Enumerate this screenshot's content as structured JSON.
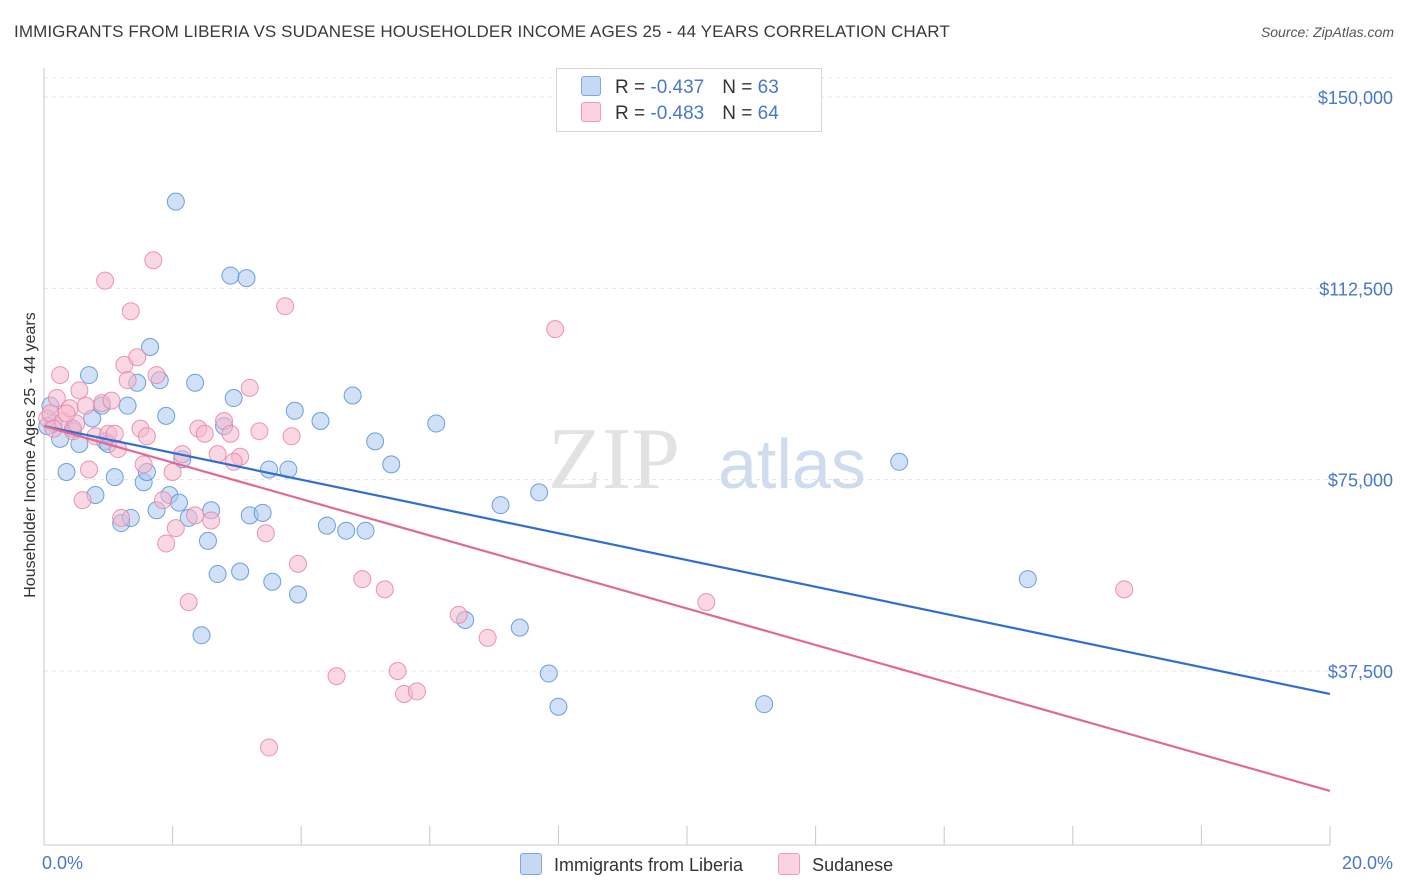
{
  "title": "IMMIGRANTS FROM LIBERIA VS SUDANESE HOUSEHOLDER INCOME AGES 25 - 44 YEARS CORRELATION CHART",
  "source": "Source: ZipAtlas.com",
  "watermark": {
    "zip": "ZIP",
    "atlas": "atlas"
  },
  "legend_top": [
    {
      "r_label": "R = ",
      "r_value": "-0.437",
      "n_label": "N = ",
      "n_value": "63",
      "color": "#aac8f0"
    },
    {
      "r_label": "R = ",
      "r_value": "-0.483",
      "n_label": "N = ",
      "n_value": "64",
      "color": "#f6b8cc"
    }
  ],
  "legend_bottom": [
    {
      "label": "Immigrants from Liberia",
      "color": "#aac8f0"
    },
    {
      "label": "Sudanese",
      "color": "#f6b8cc"
    }
  ],
  "chart_data": {
    "type": "scatter",
    "title": "IMMIGRANTS FROM LIBERIA VS SUDANESE HOUSEHOLDER INCOME AGES 25 - 44 YEARS CORRELATION CHART",
    "xlabel": "",
    "ylabel": "Householder Income Ages 25 - 44 years",
    "xlim": [
      0,
      20
    ],
    "ylim": [
      0,
      155000
    ],
    "x_tick_labels": [
      "0.0%",
      "20.0%"
    ],
    "y_ticks": [
      37500,
      75000,
      112500,
      150000
    ],
    "y_tick_labels": [
      "$37,500",
      "$75,000",
      "$112,500",
      "$150,000"
    ],
    "grid": true,
    "series": [
      {
        "name": "Immigrants from Liberia",
        "color": "#5b8fd6",
        "fill": "#aac8f0",
        "trendline": {
          "x": [
            0,
            20
          ],
          "y": [
            85500,
            33000
          ],
          "color": "#2e6fcf"
        },
        "points": [
          [
            0.1,
            89500
          ],
          [
            0.15,
            86000
          ],
          [
            0.25,
            83000
          ],
          [
            0.35,
            76500
          ],
          [
            0.45,
            85000
          ],
          [
            0.55,
            82000
          ],
          [
            0.7,
            95500
          ],
          [
            0.75,
            87000
          ],
          [
            0.8,
            72000
          ],
          [
            0.9,
            89500
          ],
          [
            0.95,
            82500
          ],
          [
            1.0,
            82000
          ],
          [
            1.1,
            75500
          ],
          [
            1.2,
            66500
          ],
          [
            1.3,
            89500
          ],
          [
            1.35,
            67500
          ],
          [
            1.45,
            94000
          ],
          [
            1.55,
            74500
          ],
          [
            1.6,
            76500
          ],
          [
            1.65,
            101000
          ],
          [
            1.75,
            69000
          ],
          [
            1.8,
            94500
          ],
          [
            1.9,
            87500
          ],
          [
            1.95,
            72000
          ],
          [
            2.05,
            129500
          ],
          [
            2.1,
            70500
          ],
          [
            2.15,
            79000
          ],
          [
            2.25,
            67500
          ],
          [
            2.35,
            94000
          ],
          [
            2.45,
            44500
          ],
          [
            2.55,
            63000
          ],
          [
            2.6,
            69000
          ],
          [
            2.7,
            56500
          ],
          [
            2.8,
            85500
          ],
          [
            2.9,
            115000
          ],
          [
            2.95,
            91000
          ],
          [
            3.05,
            57000
          ],
          [
            3.15,
            114500
          ],
          [
            3.2,
            68000
          ],
          [
            3.4,
            68500
          ],
          [
            3.5,
            77000
          ],
          [
            3.55,
            55000
          ],
          [
            3.8,
            77000
          ],
          [
            3.9,
            88500
          ],
          [
            3.95,
            52500
          ],
          [
            4.3,
            86500
          ],
          [
            4.4,
            66000
          ],
          [
            4.7,
            65000
          ],
          [
            4.8,
            91500
          ],
          [
            5.0,
            65000
          ],
          [
            5.15,
            82500
          ],
          [
            5.4,
            78000
          ],
          [
            6.1,
            86000
          ],
          [
            6.55,
            47500
          ],
          [
            7.1,
            70000
          ],
          [
            7.4,
            46000
          ],
          [
            7.7,
            72500
          ],
          [
            7.85,
            37000
          ],
          [
            8.0,
            30500
          ],
          [
            11.2,
            31000
          ],
          [
            13.3,
            78500
          ],
          [
            15.3,
            55500
          ],
          [
            0.05,
            85500
          ]
        ]
      },
      {
        "name": "Sudanese",
        "color": "#e884a6",
        "fill": "#f6b8cc",
        "trendline": {
          "x": [
            0,
            20
          ],
          "y": [
            85500,
            14000
          ],
          "color": "#e06a94"
        },
        "points": [
          [
            0.05,
            87000
          ],
          [
            0.1,
            88000
          ],
          [
            0.2,
            91000
          ],
          [
            0.25,
            95500
          ],
          [
            0.3,
            86500
          ],
          [
            0.4,
            89000
          ],
          [
            0.45,
            84500
          ],
          [
            0.5,
            86000
          ],
          [
            0.55,
            92500
          ],
          [
            0.6,
            71000
          ],
          [
            0.7,
            77000
          ],
          [
            0.8,
            83500
          ],
          [
            0.9,
            90000
          ],
          [
            0.95,
            114000
          ],
          [
            1.0,
            84000
          ],
          [
            1.05,
            90500
          ],
          [
            1.1,
            84000
          ],
          [
            1.2,
            67500
          ],
          [
            1.25,
            97500
          ],
          [
            1.3,
            94500
          ],
          [
            1.35,
            108000
          ],
          [
            1.45,
            99000
          ],
          [
            1.5,
            85000
          ],
          [
            1.55,
            78000
          ],
          [
            1.7,
            118000
          ],
          [
            1.75,
            95500
          ],
          [
            1.85,
            71000
          ],
          [
            1.9,
            62500
          ],
          [
            2.0,
            76500
          ],
          [
            2.05,
            65500
          ],
          [
            2.15,
            80000
          ],
          [
            2.25,
            51000
          ],
          [
            2.4,
            85000
          ],
          [
            2.5,
            84000
          ],
          [
            2.6,
            67000
          ],
          [
            2.7,
            80000
          ],
          [
            2.8,
            86500
          ],
          [
            2.9,
            84000
          ],
          [
            3.05,
            79500
          ],
          [
            3.2,
            93000
          ],
          [
            3.35,
            84500
          ],
          [
            3.5,
            22500
          ],
          [
            3.75,
            109000
          ],
          [
            3.85,
            83500
          ],
          [
            3.95,
            58500
          ],
          [
            4.55,
            36500
          ],
          [
            4.95,
            55500
          ],
          [
            5.3,
            53500
          ],
          [
            5.5,
            37500
          ],
          [
            5.6,
            33000
          ],
          [
            5.8,
            33500
          ],
          [
            6.45,
            48500
          ],
          [
            6.9,
            44000
          ],
          [
            7.95,
            104500
          ],
          [
            10.3,
            51000
          ],
          [
            16.8,
            53500
          ],
          [
            0.15,
            85000
          ],
          [
            0.35,
            88000
          ],
          [
            0.65,
            89500
          ],
          [
            1.15,
            81000
          ],
          [
            1.6,
            83500
          ],
          [
            2.35,
            68000
          ],
          [
            2.95,
            78500
          ],
          [
            3.45,
            64500
          ]
        ]
      }
    ]
  }
}
